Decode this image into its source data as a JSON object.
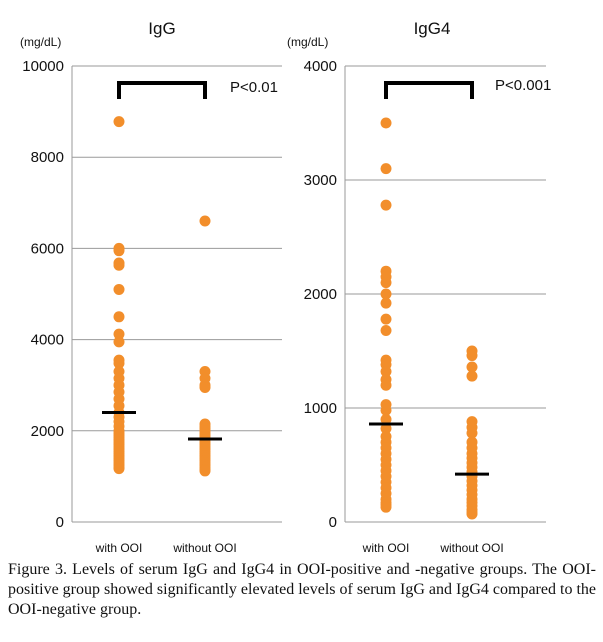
{
  "chart_data": [
    {
      "type": "scatter",
      "title": "IgG",
      "unit_label": "(mg/dL)",
      "categories": [
        "with OOI",
        "without OOI"
      ],
      "ylim": [
        0,
        10000
      ],
      "yticks": [
        "0",
        "2000",
        "4000",
        "6000",
        "8000",
        "10000"
      ],
      "grid": true,
      "point_color": "#f28e2b",
      "significance": "P<0.01",
      "series": [
        {
          "values": [
            8780,
            6000,
            5950,
            5680,
            5630,
            5100,
            4500,
            4120,
            3950,
            3550,
            3480,
            3300,
            3150,
            3000,
            2850,
            2700,
            2550,
            2400,
            2300,
            2200,
            2100,
            2000,
            1950,
            1900,
            1850,
            1800,
            1750,
            1700,
            1650,
            1600,
            1550,
            1500,
            1450,
            1400,
            1350,
            1300,
            1250,
            1200,
            1170
          ],
          "median": 2400
        },
        {
          "values": [
            6600,
            3300,
            3150,
            3000,
            2950,
            2150,
            2100,
            2050,
            2000,
            1950,
            1900,
            1850,
            1800,
            1750,
            1700,
            1650,
            1600,
            1550,
            1500,
            1450,
            1400,
            1350,
            1300,
            1250,
            1200,
            1150,
            1120
          ],
          "median": 1820
        }
      ]
    },
    {
      "type": "scatter",
      "title": "IgG4",
      "unit_label": "(mg/dL)",
      "categories": [
        "with OOI",
        "without OOI"
      ],
      "ylim": [
        0,
        4000
      ],
      "yticks": [
        "0",
        "1000",
        "2000",
        "3000",
        "4000"
      ],
      "grid": true,
      "point_color": "#f28e2b",
      "significance": "P<0.001",
      "series": [
        {
          "values": [
            3500,
            3100,
            2780,
            2200,
            2150,
            2100,
            2000,
            1920,
            1780,
            1680,
            1420,
            1380,
            1320,
            1250,
            1200,
            1030,
            980,
            900,
            820,
            750,
            700,
            650,
            600,
            550,
            500,
            450,
            400,
            350,
            300,
            250,
            200,
            170,
            150,
            130
          ],
          "median": 860
        },
        {
          "values": [
            1500,
            1460,
            1360,
            1280,
            880,
            830,
            780,
            700,
            650,
            600,
            560,
            520,
            480,
            440,
            400,
            360,
            320,
            280,
            240,
            200,
            170,
            140,
            110,
            90,
            70
          ],
          "median": 420
        }
      ]
    }
  ],
  "caption": "Figure 3. Levels of serum IgG and IgG4 in OOI-positive and -negative groups. The OOI-positive group showed significantly elevated levels of serum IgG and IgG4 compared to the OOI-negative group."
}
